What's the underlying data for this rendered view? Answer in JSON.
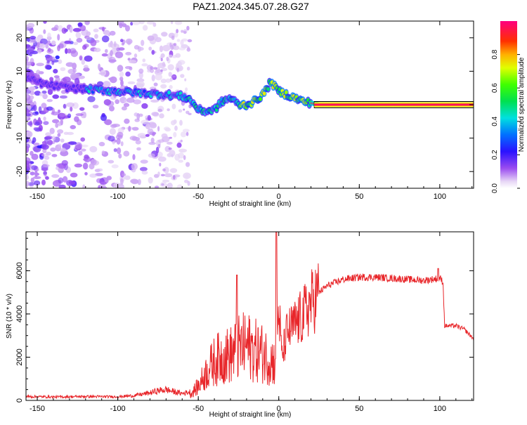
{
  "title": "PAZ1.2024.345.07.28.G27",
  "chart_data": [
    {
      "type": "heatmap",
      "xlabel": "Height of straight line (km)",
      "ylabel": "Frequency (Hz)",
      "xlim": [
        -157,
        121
      ],
      "ylim": [
        -25,
        25
      ],
      "xticks": [
        -150,
        -100,
        -50,
        0,
        50,
        100
      ],
      "yticks": [
        -20,
        -10,
        0,
        10,
        20
      ],
      "colorbar": {
        "label": "Normalized spectral amplitude",
        "range": [
          0,
          1
        ],
        "ticks": [
          0.0,
          0.2,
          0.4,
          0.6,
          0.8
        ]
      },
      "ridge": {
        "description_points_x": [
          -157,
          -145,
          -130,
          -115,
          -100,
          -85,
          -70,
          -60,
          -55,
          -50,
          -45,
          -40,
          -35,
          -30,
          -25,
          -20,
          -15,
          -10,
          -7,
          -5,
          -2,
          0,
          5,
          10,
          15,
          20,
          25,
          50,
          75,
          100,
          121
        ],
        "description_points_y": [
          8,
          6,
          5,
          4.5,
          4,
          3.5,
          3,
          2.5,
          1.5,
          -1.5,
          -2,
          -1.5,
          1,
          2,
          0,
          0,
          1,
          3,
          5,
          7,
          5,
          4,
          3,
          2,
          1,
          0.5,
          0,
          0,
          0,
          0,
          0
        ]
      },
      "grid": false
    },
    {
      "type": "line",
      "xlabel": "Height of straight line (km)",
      "ylabel": "SNR (10 * v/v)",
      "xlim": [
        -157,
        121
      ],
      "ylim": [
        0,
        7800
      ],
      "xticks": [
        -150,
        -100,
        -50,
        0,
        50,
        100
      ],
      "yticks": [
        0,
        2000,
        4000,
        6000
      ],
      "color": "#e8262a",
      "envelope": {
        "x": [
          -157,
          -140,
          -120,
          -100,
          -90,
          -80,
          -75,
          -70,
          -65,
          -60,
          -55,
          -50,
          -45,
          -40,
          -35,
          -30,
          -25,
          -20,
          -15,
          -10,
          -5,
          -2,
          0,
          2,
          5,
          10,
          15,
          20,
          25,
          30,
          40,
          50,
          60,
          70,
          80,
          90,
          95,
          100,
          102,
          103,
          110,
          115,
          121
        ],
        "y": [
          180,
          160,
          180,
          170,
          220,
          350,
          450,
          500,
          400,
          320,
          400,
          900,
          1800,
          2500,
          2800,
          2900,
          3300,
          3500,
          3200,
          3000,
          2600,
          2400,
          4200,
          2000,
          3100,
          3500,
          3900,
          4500,
          5000,
          5300,
          5600,
          5700,
          5700,
          5650,
          5600,
          5550,
          5600,
          5650,
          5500,
          3450,
          3450,
          3300,
          2850
        ]
      },
      "spikes": [
        {
          "x": -26,
          "y": 5800
        },
        {
          "x": -1.5,
          "y": 7800
        },
        {
          "x": 99,
          "y": 6100
        }
      ],
      "grid": false
    }
  ]
}
